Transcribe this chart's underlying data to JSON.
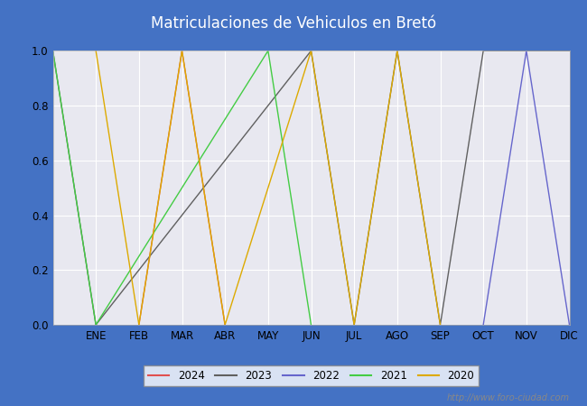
{
  "title": "Matriculaciones de Vehiculos en Bretó",
  "title_color": "white",
  "title_bg_color": "#4472c4",
  "plot_bg_color": "#e8e8f0",
  "series": [
    {
      "label": "2024",
      "color": "#e05050",
      "points": [
        [
          2,
          0
        ],
        [
          3,
          1
        ],
        [
          4,
          0
        ]
      ]
    },
    {
      "label": "2023",
      "color": "#606060",
      "points": [
        [
          0,
          1
        ],
        [
          1,
          0
        ],
        [
          6,
          1
        ],
        [
          7,
          0
        ],
        [
          8,
          1
        ],
        [
          9,
          0
        ],
        [
          10,
          1
        ],
        [
          12,
          1
        ]
      ]
    },
    {
      "label": "2022",
      "color": "#6666cc",
      "points": [
        [
          10,
          0
        ],
        [
          11,
          1
        ],
        [
          12,
          0
        ]
      ]
    },
    {
      "label": "2021",
      "color": "#44cc44",
      "points": [
        [
          0,
          1
        ],
        [
          1,
          0
        ],
        [
          5,
          1
        ],
        [
          6,
          0
        ]
      ]
    },
    {
      "label": "2020",
      "color": "#ddaa00",
      "points": [
        [
          1,
          1
        ],
        [
          2,
          0
        ],
        [
          3,
          1
        ],
        [
          4,
          0
        ],
        [
          6,
          1
        ],
        [
          7,
          0
        ],
        [
          8,
          1
        ],
        [
          9,
          0
        ]
      ]
    }
  ],
  "ylim": [
    0.0,
    1.0
  ],
  "yticks": [
    0.0,
    0.2,
    0.4,
    0.6,
    0.8,
    1.0
  ],
  "months": [
    "ENE",
    "FEB",
    "MAR",
    "ABR",
    "MAY",
    "JUN",
    "JUL",
    "AGO",
    "SEP",
    "OCT",
    "NOV",
    "DIC"
  ],
  "watermark": "http://www.foro-ciudad.com"
}
